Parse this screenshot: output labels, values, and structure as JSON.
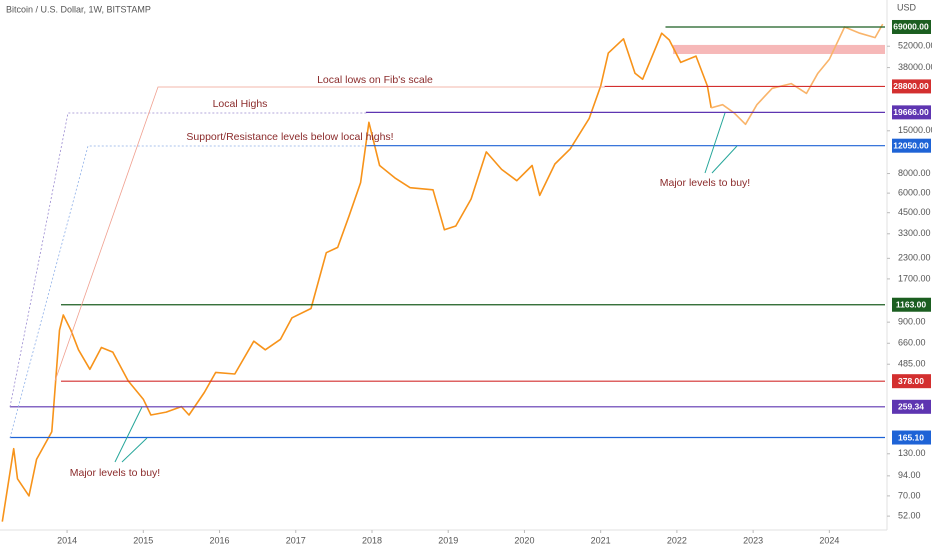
{
  "chart_data": {
    "type": "line",
    "title": "Bitcoin / U.S. Dollar, 1W, BITSTAMP",
    "currency": "USD",
    "log_scale": true,
    "xlim": [
      2013.12,
      2024.73
    ],
    "xticks": [
      2014,
      2015,
      2016,
      2017,
      2018,
      2019,
      2020,
      2021,
      2022,
      2023,
      2024
    ],
    "ylim": [
      42.4,
      102600
    ],
    "yticks": [
      {
        "value": 52000,
        "label": "52000.00"
      },
      {
        "value": 38000,
        "label": "38000.00"
      },
      {
        "value": 15000,
        "label": "15000.00"
      },
      {
        "value": 8000,
        "label": "8000.00"
      },
      {
        "value": 6000,
        "label": "6000.00"
      },
      {
        "value": 4500,
        "label": "4500.00"
      },
      {
        "value": 3300,
        "label": "3300.00"
      },
      {
        "value": 2300,
        "label": "2300.00"
      },
      {
        "value": 1700,
        "label": "1700.00"
      },
      {
        "value": 900,
        "label": "900.00"
      },
      {
        "value": 660,
        "label": "660.00"
      },
      {
        "value": 485,
        "label": "485.00"
      },
      {
        "value": 130,
        "label": "130.00"
      },
      {
        "value": 94,
        "label": "94.00"
      },
      {
        "value": 70,
        "label": "70.00"
      },
      {
        "value": 52,
        "label": "52.00"
      }
    ],
    "series": [
      {
        "color": "#f7931a",
        "x": [
          2013.15,
          2013.3,
          2013.35,
          2013.5,
          2013.6,
          2013.8,
          2013.9,
          2013.95,
          2014.05,
          2014.15,
          2014.3,
          2014.45,
          2014.6,
          2014.8,
          2015.0,
          2015.1,
          2015.3,
          2015.5,
          2015.6,
          2015.8,
          2015.95,
          2016.2,
          2016.45,
          2016.6,
          2016.8,
          2016.95,
          2017.2,
          2017.4,
          2017.55,
          2017.7,
          2017.85,
          2017.96,
          2018.1,
          2018.3,
          2018.5,
          2018.8,
          2018.95,
          2019.1,
          2019.3,
          2019.5,
          2019.7,
          2019.9,
          2020.1,
          2020.2,
          2020.4,
          2020.6,
          2020.85,
          2021.0,
          2021.1,
          2021.3,
          2021.45,
          2021.55,
          2021.8,
          2021.9,
          2022.05,
          2022.25,
          2022.4,
          2022.45
        ],
        "values": [
          48,
          140,
          90,
          70,
          120,
          180,
          800,
          1000,
          800,
          600,
          450,
          620,
          580,
          380,
          290,
          230,
          240,
          260,
          230,
          320,
          430,
          420,
          680,
          600,
          700,
          960,
          1100,
          2500,
          2700,
          4300,
          7000,
          17000,
          9000,
          7500,
          6500,
          6300,
          3500,
          3700,
          5500,
          11000,
          8500,
          7200,
          9000,
          5800,
          9200,
          11500,
          18000,
          29000,
          47000,
          58000,
          35000,
          32000,
          63000,
          57000,
          41000,
          45000,
          29000,
          21000
        ]
      },
      {
        "color": "#f9b46a",
        "x": [
          2022.45,
          2022.6,
          2022.75,
          2022.9,
          2023.05,
          2023.25,
          2023.5,
          2023.7,
          2023.85,
          2024.0,
          2024.2,
          2024.4,
          2024.6,
          2024.7
        ],
        "values": [
          21000,
          22000,
          19500,
          16500,
          22000,
          28000,
          30000,
          26000,
          35000,
          43000,
          69000,
          63000,
          59000,
          72000
        ]
      }
    ],
    "levels": [
      {
        "value": 69000,
        "label": "69000.00",
        "color": "#1b5e20",
        "x_start": 2021.85
      },
      {
        "value": 28800,
        "label": "28800.00",
        "color": "#d32f2f",
        "x_start": 2021.05
      },
      {
        "value": 19666,
        "label": "19666.00",
        "color": "#5e35b1",
        "x_start": 2017.92
      },
      {
        "value": 12050,
        "label": "12050.00",
        "color": "#1e63d6",
        "x_start": 2017.92
      },
      {
        "value": 1163,
        "label": "1163.00",
        "color": "#1b5e20",
        "x_start": 2013.92
      },
      {
        "value": 378,
        "label": "378.00",
        "color": "#d32f2f",
        "x_start": 2013.92
      },
      {
        "value": 259.34,
        "label": "259.34",
        "color": "#5e35b1",
        "x_start": 2013.25
      },
      {
        "value": 165.1,
        "label": "165.10",
        "color": "#1e63d6",
        "x_start": 2013.25
      }
    ],
    "zone": {
      "low": 46400,
      "high": 53000,
      "x_start": 2021.95,
      "color": "#f4a6a6"
    },
    "annotations": {
      "fib": "Local lows on Fib's scale",
      "highs": "Local Highs",
      "support": "Support/Resistance levels below local highs!",
      "buy_top": "Major levels to buy!",
      "buy_bottom": "Major levels to buy!"
    }
  }
}
